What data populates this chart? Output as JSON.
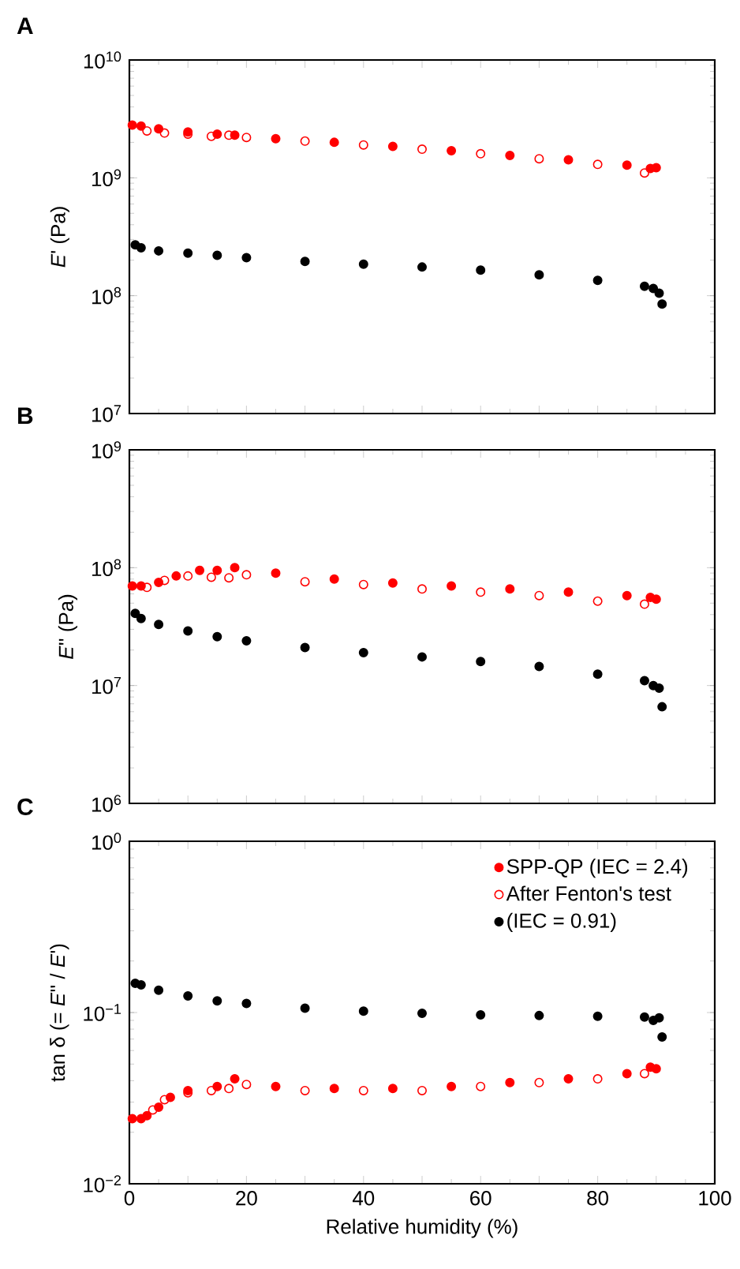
{
  "chart_data": [
    {
      "type": "scatter",
      "title": "A",
      "ylabel": "*E*' (Pa)",
      "log": "y",
      "tick_labels": "y",
      "xlim": [
        0,
        100
      ],
      "xticks": [
        {
          "value": 0,
          "label": null
        },
        {
          "value": 10,
          "label": null
        },
        {
          "value": 20,
          "label": null
        },
        {
          "value": 30,
          "label": null
        },
        {
          "value": 40,
          "label": null
        },
        {
          "value": 50,
          "label": null
        },
        {
          "value": 60,
          "label": null
        },
        {
          "value": 70,
          "label": null
        },
        {
          "value": 80,
          "label": null
        },
        {
          "value": 90,
          "label": null
        },
        {
          "value": 100,
          "label": null
        }
      ],
      "ylim": [
        10000000.0,
        10000000000.0
      ],
      "yticks": [
        {
          "value": 10000000.0,
          "label": "10$^{7}$"
        },
        {
          "value": 100000000.0,
          "label": "10$^{8}$"
        },
        {
          "value": 1000000000.0,
          "label": "10$^{9}$"
        },
        {
          "value": 10000000000.0,
          "label": "10$^{10}$"
        }
      ],
      "series": [
        {
          "color": "#ff0000",
          "marker": "circle",
          "x": [
            0.5,
            2,
            5,
            10,
            15,
            18,
            25,
            35,
            45,
            55,
            65,
            75,
            85,
            89,
            90
          ],
          "values": [
            2800000000.0,
            2750000000.0,
            2600000000.0,
            2450000000.0,
            2350000000.0,
            2300000000.0,
            2150000000.0,
            2000000000.0,
            1850000000.0,
            1700000000.0,
            1550000000.0,
            1420000000.0,
            1280000000.0,
            1200000000.0,
            1220000000.0
          ]
        },
        {
          "color": "#ff0000",
          "marker": "open circle",
          "x": [
            3,
            6,
            10,
            14,
            17,
            20,
            30,
            40,
            50,
            60,
            70,
            80,
            88
          ],
          "values": [
            2500000000.0,
            2400000000.0,
            2350000000.0,
            2250000000.0,
            2300000000.0,
            2200000000.0,
            2050000000.0,
            1900000000.0,
            1750000000.0,
            1600000000.0,
            1450000000.0,
            1300000000.0,
            1100000000.0
          ]
        },
        {
          "color": "#000000",
          "marker": "circle",
          "x": [
            1,
            2,
            5,
            10,
            15,
            20,
            30,
            40,
            50,
            60,
            70,
            80,
            88,
            89.5,
            90.5,
            91
          ],
          "values": [
            270000000.0,
            255000000.0,
            240000000.0,
            230000000.0,
            220000000.0,
            210000000.0,
            195000000.0,
            185000000.0,
            175000000.0,
            165000000.0,
            150000000.0,
            135000000.0,
            120000000.0,
            115000000.0,
            105000000.0,
            85000000.0
          ]
        }
      ]
    },
    {
      "type": "scatter",
      "title": "B",
      "ylabel": "*E*'' (Pa)",
      "log": "y",
      "tick_labels": "y",
      "xlim": [
        0,
        100
      ],
      "xticks": [
        {
          "value": 0,
          "label": null
        },
        {
          "value": 10,
          "label": null
        },
        {
          "value": 20,
          "label": null
        },
        {
          "value": 30,
          "label": null
        },
        {
          "value": 40,
          "label": null
        },
        {
          "value": 50,
          "label": null
        },
        {
          "value": 60,
          "label": null
        },
        {
          "value": 70,
          "label": null
        },
        {
          "value": 80,
          "label": null
        },
        {
          "value": 90,
          "label": null
        },
        {
          "value": 100,
          "label": null
        }
      ],
      "ylim": [
        1000000.0,
        1000000000.0
      ],
      "yticks": [
        {
          "value": 1000000.0,
          "label": "10$^{6}$"
        },
        {
          "value": 10000000.0,
          "label": "10$^{7}$"
        },
        {
          "value": 100000000.0,
          "label": "10$^{8}$"
        },
        {
          "value": 1000000000.0,
          "label": "10$^{9}$"
        }
      ],
      "series": [
        {
          "color": "#ff0000",
          "marker": "circle",
          "x": [
            0.5,
            2,
            5,
            8,
            12,
            15,
            18,
            25,
            35,
            45,
            55,
            65,
            75,
            85,
            89,
            90
          ],
          "values": [
            70000000.0,
            70000000.0,
            75000000.0,
            85000000.0,
            95000000.0,
            95000000.0,
            100000000.0,
            90000000.0,
            80000000.0,
            74000000.0,
            70000000.0,
            66000000.0,
            62000000.0,
            58000000.0,
            56000000.0,
            54000000.0
          ]
        },
        {
          "color": "#ff0000",
          "marker": "open circle",
          "x": [
            3,
            6,
            10,
            14,
            17,
            20,
            30,
            40,
            50,
            60,
            70,
            80,
            88
          ],
          "values": [
            68000000.0,
            78000000.0,
            85000000.0,
            83000000.0,
            82000000.0,
            87000000.0,
            76000000.0,
            72000000.0,
            66000000.0,
            62000000.0,
            58000000.0,
            52000000.0,
            49000000.0
          ]
        },
        {
          "color": "#000000",
          "marker": "circle",
          "x": [
            1,
            2,
            5,
            10,
            15,
            20,
            30,
            40,
            50,
            60,
            70,
            80,
            88,
            89.5,
            90.5,
            91
          ],
          "values": [
            41000000.0,
            37000000.0,
            33000000.0,
            29000000.0,
            26000000.0,
            24000000.0,
            21000000.0,
            19000000.0,
            17500000.0,
            16000000.0,
            14500000.0,
            12500000.0,
            11000000.0,
            10000000.0,
            9500000.0,
            6600000.0
          ]
        }
      ]
    },
    {
      "type": "scatter",
      "title": "C",
      "xlabel": "Relative humidity (%)",
      "ylabel": "tan δ (= *E*'' / *E*')",
      "log": "y",
      "legend": "top right",
      "xlim": [
        0,
        100
      ],
      "xticks": [
        0,
        {
          "value": 10,
          "label": null
        },
        20,
        {
          "value": 30,
          "label": null
        },
        40,
        {
          "value": 50,
          "label": null
        },
        60,
        {
          "value": 70,
          "label": null
        },
        80,
        {
          "value": 90,
          "label": null
        },
        100
      ],
      "ylim": [
        0.01,
        1
      ],
      "yticks": [
        {
          "value": 0.01,
          "label": "10$^{−2}$"
        },
        {
          "value": 0.1,
          "label": "10$^{−1}$"
        },
        {
          "value": 1,
          "label": "10$^{0}$"
        }
      ],
      "series": [
        {
          "name": "SPP-QP (IEC = 2.4)",
          "color": "#ff0000",
          "marker": "circle",
          "x": [
            0.5,
            2,
            3,
            5,
            7,
            10,
            15,
            18,
            25,
            35,
            45,
            55,
            65,
            75,
            85,
            89,
            90
          ],
          "values": [
            0.024,
            0.024,
            0.025,
            0.028,
            0.032,
            0.035,
            0.037,
            0.041,
            0.037,
            0.036,
            0.036,
            0.037,
            0.039,
            0.041,
            0.044,
            0.048,
            0.047
          ]
        },
        {
          "name": "After Fenton's test",
          "color": "#ff0000",
          "marker": "open circle",
          "x": [
            4,
            6,
            10,
            14,
            17,
            20,
            30,
            40,
            50,
            60,
            70,
            80,
            88
          ],
          "values": [
            0.027,
            0.031,
            0.034,
            0.035,
            0.036,
            0.038,
            0.035,
            0.035,
            0.035,
            0.037,
            0.039,
            0.041,
            0.044
          ]
        },
        {
          "name": "(IEC = 0.91)",
          "color": "#000000",
          "marker": "circle",
          "x": [
            1,
            2,
            5,
            10,
            15,
            20,
            30,
            40,
            50,
            60,
            70,
            80,
            88,
            89.5,
            90.5,
            91
          ],
          "values": [
            0.148,
            0.145,
            0.135,
            0.125,
            0.117,
            0.113,
            0.106,
            0.102,
            0.099,
            0.097,
            0.096,
            0.095,
            0.094,
            0.09,
            0.093,
            0.072
          ]
        }
      ]
    }
  ]
}
